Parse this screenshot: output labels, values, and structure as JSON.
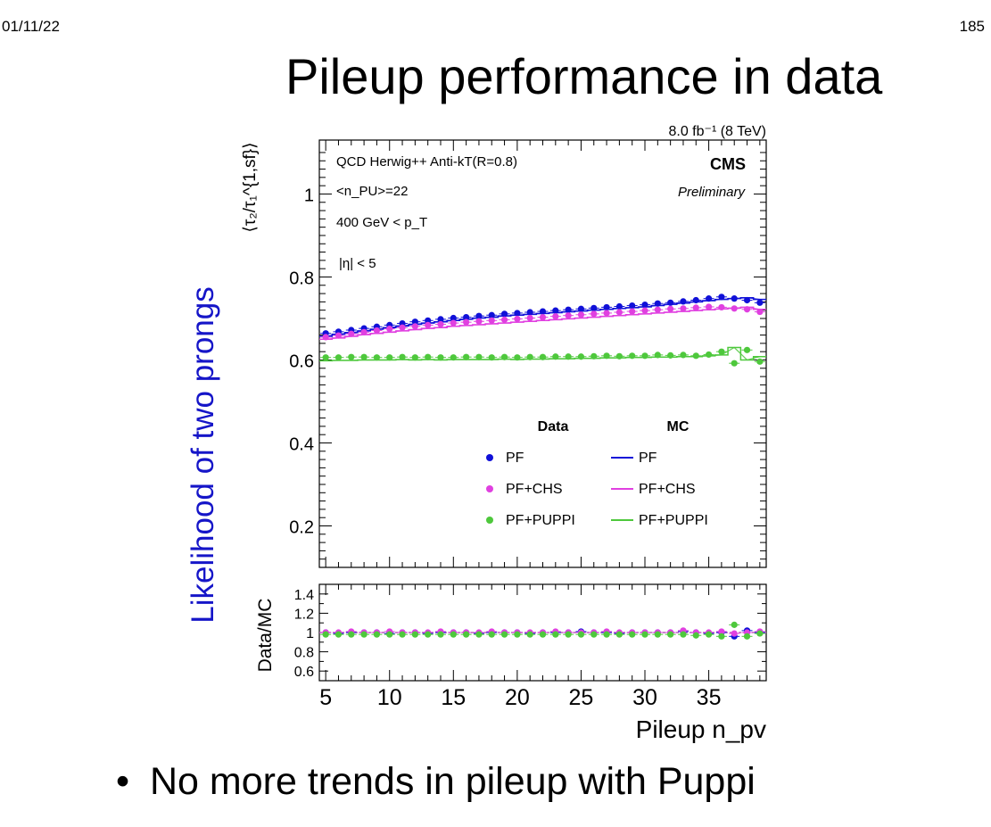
{
  "slide": {
    "date": "01/11/22",
    "page_number": "185",
    "title": "Pileup performance in data",
    "side_label": "Likelihood of two prongs",
    "bullet": "No more trends in pileup with Puppi"
  },
  "chart_data": [
    {
      "type": "line",
      "panel": "main",
      "x": [
        5,
        6,
        7,
        8,
        9,
        10,
        11,
        12,
        13,
        14,
        15,
        16,
        17,
        18,
        19,
        20,
        21,
        22,
        23,
        24,
        25,
        26,
        27,
        28,
        29,
        30,
        31,
        32,
        33,
        34,
        35,
        36,
        37,
        38,
        39
      ],
      "xlim": [
        4.5,
        39.5
      ],
      "ylim": [
        0.1,
        1.13
      ],
      "yticks": [
        0.2,
        0.4,
        0.6,
        0.8,
        1
      ],
      "ylabel": "⟨τ₂/τ₁^{1,sf}⟩",
      "lumi_label": "8.0 fb⁻¹ (8 TeV)",
      "annotations": {
        "sample": "QCD Herwig++ Anti-kT(R=0.8)",
        "npu": "<n_PU>=22",
        "pt": "400 GeV < p_T",
        "eta": "|η|  < 5",
        "experiment": "CMS",
        "status": "Preliminary"
      },
      "legend": {
        "placement": "lower-right",
        "data_header": "Data",
        "mc_header": "MC",
        "data_labels": [
          "PF",
          "PF+CHS",
          "PF+PUPPI"
        ],
        "mc_labels": [
          "PF",
          "PF+CHS",
          "PF+PUPPI"
        ]
      },
      "series": [
        {
          "name": "PF",
          "color": "#1010d8",
          "data": [
            0.664,
            0.668,
            0.672,
            0.676,
            0.68,
            0.684,
            0.688,
            0.692,
            0.695,
            0.698,
            0.701,
            0.703,
            0.706,
            0.708,
            0.711,
            0.713,
            0.715,
            0.717,
            0.719,
            0.721,
            0.723,
            0.725,
            0.727,
            0.729,
            0.731,
            0.733,
            0.736,
            0.738,
            0.741,
            0.744,
            0.748,
            0.752,
            0.748,
            0.744,
            0.738
          ],
          "mc": [
            0.657,
            0.662,
            0.666,
            0.67,
            0.674,
            0.678,
            0.682,
            0.686,
            0.689,
            0.692,
            0.695,
            0.698,
            0.701,
            0.703,
            0.706,
            0.708,
            0.71,
            0.712,
            0.714,
            0.716,
            0.718,
            0.72,
            0.722,
            0.724,
            0.726,
            0.728,
            0.731,
            0.734,
            0.737,
            0.74,
            0.743,
            0.746,
            0.748,
            0.75,
            0.746
          ]
        },
        {
          "name": "PF+CHS",
          "color": "#e040e0",
          "data": [
            0.655,
            0.659,
            0.663,
            0.667,
            0.671,
            0.675,
            0.678,
            0.681,
            0.684,
            0.686,
            0.689,
            0.691,
            0.693,
            0.695,
            0.697,
            0.699,
            0.701,
            0.703,
            0.705,
            0.707,
            0.709,
            0.711,
            0.713,
            0.715,
            0.717,
            0.719,
            0.721,
            0.723,
            0.724,
            0.726,
            0.728,
            0.727,
            0.724,
            0.722,
            0.716
          ],
          "mc": [
            0.65,
            0.653,
            0.657,
            0.661,
            0.664,
            0.667,
            0.67,
            0.673,
            0.676,
            0.678,
            0.681,
            0.683,
            0.685,
            0.687,
            0.689,
            0.691,
            0.693,
            0.695,
            0.697,
            0.699,
            0.701,
            0.703,
            0.705,
            0.707,
            0.709,
            0.711,
            0.713,
            0.715,
            0.717,
            0.719,
            0.721,
            0.723,
            0.725,
            0.727,
            0.722
          ]
        },
        {
          "name": "PF+PUPPI",
          "color": "#4ec83c",
          "data": [
            0.606,
            0.606,
            0.607,
            0.607,
            0.606,
            0.606,
            0.607,
            0.606,
            0.607,
            0.606,
            0.606,
            0.607,
            0.607,
            0.606,
            0.607,
            0.606,
            0.607,
            0.607,
            0.608,
            0.608,
            0.608,
            0.609,
            0.61,
            0.609,
            0.61,
            0.61,
            0.612,
            0.611,
            0.612,
            0.61,
            0.613,
            0.62,
            0.592,
            0.624,
            0.596
          ],
          "mc": [
            0.598,
            0.599,
            0.599,
            0.6,
            0.6,
            0.6,
            0.601,
            0.6,
            0.601,
            0.6,
            0.601,
            0.601,
            0.601,
            0.601,
            0.602,
            0.601,
            0.602,
            0.602,
            0.603,
            0.603,
            0.604,
            0.604,
            0.605,
            0.605,
            0.606,
            0.606,
            0.607,
            0.607,
            0.608,
            0.608,
            0.61,
            0.612,
            0.63,
            0.6,
            0.608
          ]
        }
      ]
    },
    {
      "type": "scatter",
      "panel": "ratio",
      "ylabel": "Data/MC",
      "xlabel": "Pileup n_pv",
      "xlim": [
        4.5,
        39.5
      ],
      "ylim": [
        0.5,
        1.5
      ],
      "xticks": [
        5,
        10,
        15,
        20,
        25,
        30,
        35
      ],
      "yticks": [
        0.6,
        0.8,
        1,
        1.2,
        1.4
      ],
      "reference_line": 1.0,
      "series": [
        {
          "name": "PF",
          "color": "#1010d8",
          "values": [
            1.0,
            0.99,
            1.0,
            1.0,
            1.0,
            0.99,
            1.0,
            1.0,
            0.99,
            1.0,
            1.0,
            1.0,
            0.99,
            1.0,
            1.0,
            1.0,
            0.99,
            1.0,
            1.0,
            1.0,
            1.01,
            1.0,
            1.0,
            0.99,
            1.0,
            1.0,
            1.0,
            1.0,
            1.01,
            1.0,
            0.99,
            1.0,
            0.96,
            1.02,
            1.0
          ]
        },
        {
          "name": "PF+CHS",
          "color": "#e040e0",
          "values": [
            1.0,
            1.0,
            1.01,
            1.0,
            1.0,
            1.01,
            1.0,
            1.0,
            1.0,
            1.01,
            1.0,
            1.0,
            1.0,
            1.01,
            1.0,
            1.0,
            1.0,
            1.0,
            1.01,
            1.0,
            1.0,
            1.0,
            1.01,
            1.0,
            1.0,
            1.0,
            1.0,
            1.0,
            1.02,
            1.0,
            1.0,
            1.01,
            0.99,
            1.0,
            1.01
          ]
        },
        {
          "name": "PF+PUPPI",
          "color": "#4ec83c",
          "values": [
            0.98,
            0.98,
            0.98,
            0.98,
            0.98,
            0.98,
            0.98,
            0.98,
            0.98,
            0.98,
            0.98,
            0.98,
            0.98,
            0.98,
            0.98,
            0.98,
            0.98,
            0.98,
            0.98,
            0.98,
            0.98,
            0.98,
            0.98,
            0.98,
            0.98,
            0.98,
            0.98,
            0.98,
            0.98,
            0.97,
            0.98,
            0.96,
            1.08,
            0.96,
            0.99
          ]
        }
      ]
    }
  ]
}
